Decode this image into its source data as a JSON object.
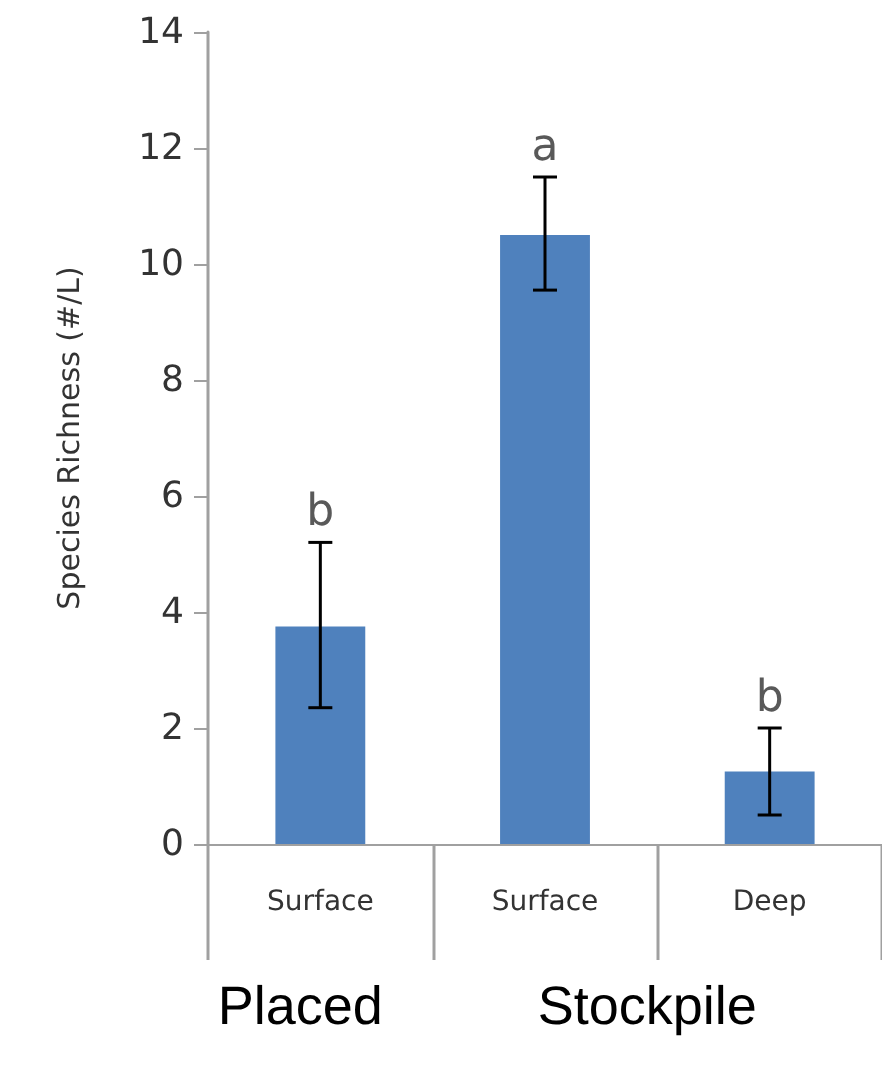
{
  "chart_data": {
    "type": "bar",
    "ylabel": "Species Richness (#/L)",
    "categories": [
      "Surface",
      "Surface",
      "Deep"
    ],
    "values": [
      3.75,
      10.5,
      1.25
    ],
    "errors": [
      [
        2.35,
        5.2
      ],
      [
        9.55,
        11.5
      ],
      [
        0.5,
        2.0
      ]
    ],
    "color": "#4f81bd",
    "ylim": [
      0,
      14
    ],
    "yticks": [
      0,
      2,
      4,
      6,
      8,
      10,
      12,
      14
    ],
    "grid": false,
    "annotations": [
      "b",
      "a",
      "b",
      "Placed",
      "Stockpile"
    ]
  }
}
